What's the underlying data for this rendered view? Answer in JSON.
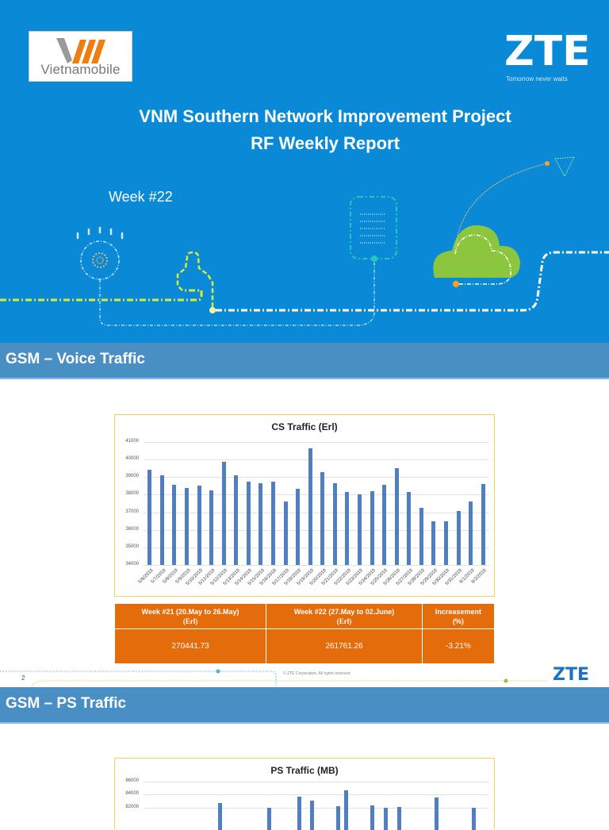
{
  "slide1": {
    "client_logo_text": "Vietnamobile",
    "vendor_logo_text": "ZTE",
    "vendor_tagline": "Tomorrow never waits",
    "title_line1": "VNM Southern Network Improvement Project",
    "title_line2": "RF Weekly Report",
    "week": "Week #22"
  },
  "slide2": {
    "section_title": "GSM – Voice Traffic",
    "table": {
      "headers": [
        [
          "Week  #21 (20.May to  26.May)",
          "(Erl)"
        ],
        [
          "Week  #22 (27.May to  02.June)",
          "(Erl)"
        ],
        [
          "Increasement",
          "(%)"
        ]
      ],
      "values": [
        "270441.73",
        "261761.26",
        "-3.21%"
      ]
    },
    "footer": {
      "page_number": "2",
      "copyright": "© ZTE Corporation. All rights reserved",
      "logo": "ZTE"
    }
  },
  "slide3": {
    "section_title": "GSM – PS Traffic"
  },
  "chart_data": [
    {
      "type": "bar",
      "title": "CS Traffic (Erl)",
      "xlabel": "",
      "ylabel": "",
      "ylim": [
        34000,
        41000
      ],
      "yticks": [
        34000,
        35000,
        36000,
        37000,
        38000,
        39000,
        40000,
        41000
      ],
      "grid": true,
      "legend": "none",
      "categories": [
        "5/6/2019",
        "5/7/2019",
        "5/8/2019",
        "5/9/2019",
        "5/10/2019",
        "5/11/2019",
        "5/12/2019",
        "5/13/2019",
        "5/14/2019",
        "5/15/2019",
        "5/16/2019",
        "5/17/2019",
        "5/18/2019",
        "5/19/2019",
        "5/20/2019",
        "5/21/2019",
        "5/22/2019",
        "5/23/2019",
        "5/24/2019",
        "5/25/2019",
        "5/26/2019",
        "5/27/2019",
        "5/28/2019",
        "5/29/2019",
        "5/30/2019",
        "5/31/2019",
        "6/1/2019",
        "6/2/2019"
      ],
      "values": [
        39400,
        39100,
        38550,
        38400,
        38500,
        38250,
        39850,
        39100,
        38750,
        38650,
        38750,
        37600,
        38350,
        40650,
        39300,
        38650,
        38150,
        38000,
        38200,
        38550,
        39500,
        38150,
        37250,
        36500,
        36500,
        37050,
        37600,
        38600
      ]
    },
    {
      "type": "bar",
      "title": "PS Traffic (MB)",
      "xlabel": "",
      "ylabel": "",
      "yticks_visible": [
        82000,
        84000,
        86000
      ],
      "grid": true,
      "legend": "none",
      "note": "chart cropped at bottom of screenshot; only bar tops above ~82000 visible",
      "visible_bar_peaks": [
        82700,
        82000,
        83700,
        83100,
        82200,
        84600,
        82300,
        82000,
        82100,
        83500,
        82000
      ]
    }
  ]
}
